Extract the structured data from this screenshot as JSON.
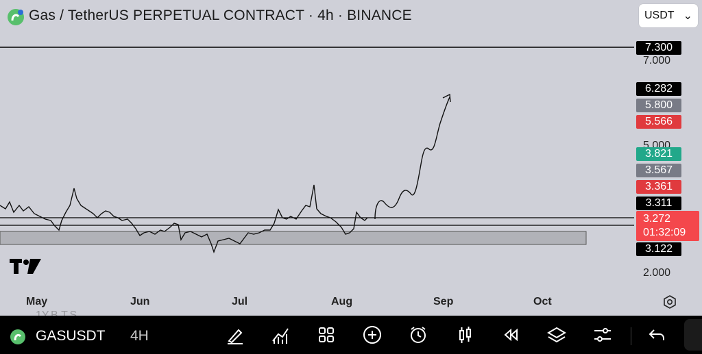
{
  "header": {
    "title": "Gas / TetherUS PERPETUAL CONTRACT · 4h · BINANCE",
    "currency": "USDT",
    "currency_icon": "chevron-down-icon"
  },
  "price_axis": {
    "labels": [
      "7.000",
      "5.000",
      "2.000"
    ],
    "tags": [
      {
        "value": "7.300",
        "bg": "#000000",
        "fg": "#ffffff"
      },
      {
        "value": "6.282",
        "bg": "#000000",
        "fg": "#ffffff"
      },
      {
        "value": "5.800",
        "bg": "#787b86",
        "fg": "#ffffff"
      },
      {
        "value": "5.566",
        "bg": "#e03a3e",
        "fg": "#ffffff"
      },
      {
        "value": "3.821",
        "bg": "#22a88a",
        "fg": "#ffffff"
      },
      {
        "value": "3.567",
        "bg": "#787b86",
        "fg": "#ffffff"
      },
      {
        "value": "3.361",
        "bg": "#e03a3e",
        "fg": "#ffffff"
      },
      {
        "value": "3.311",
        "bg": "#000000",
        "fg": "#ffffff"
      },
      {
        "value": "3.122",
        "bg": "#000000",
        "fg": "#ffffff"
      }
    ],
    "last_price": {
      "value": "3.272",
      "countdown": "01:32:09",
      "bg": "#f4474c",
      "fg": "#ffffff"
    }
  },
  "time_axis": [
    "May",
    "Jun",
    "Jul",
    "Aug",
    "Sep",
    "Oct"
  ],
  "toolbar": {
    "symbol": "GASUSDT",
    "interval": "4H",
    "ghost_text": "1Y.B.T.S",
    "tools": [
      "brush-icon",
      "indicators-icon",
      "grid-icon",
      "add-icon",
      "alarm-icon",
      "candles-icon",
      "replay-icon",
      "layers-icon",
      "settings-icon",
      "undo-icon"
    ]
  },
  "colors": {
    "background": "#cfd0d8",
    "accent_green": "#22a88a",
    "accent_red": "#e03a3e"
  }
}
